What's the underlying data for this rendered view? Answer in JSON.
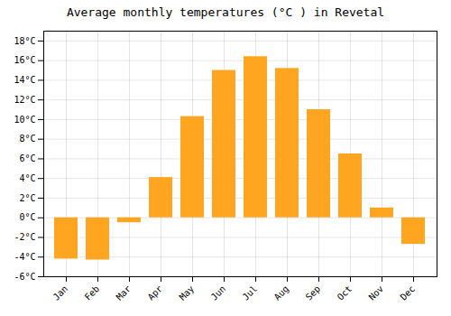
{
  "chart_data": {
    "type": "bar",
    "title": "Average monthly temperatures (°C ) in Revetal",
    "categories": [
      "Jan",
      "Feb",
      "Mar",
      "Apr",
      "May",
      "Jun",
      "Jul",
      "Aug",
      "Sep",
      "Oct",
      "Nov",
      "Dec"
    ],
    "values": [
      -4.2,
      -4.3,
      -0.5,
      4.1,
      10.3,
      15.0,
      16.4,
      15.2,
      11.0,
      6.5,
      1.0,
      -2.7
    ],
    "color": "#FFA520",
    "ylim": [
      -6,
      19
    ],
    "yticks": [
      {
        "value": -6,
        "label": "-6°C"
      },
      {
        "value": -4,
        "label": "-4°C"
      },
      {
        "value": -2,
        "label": "-2°C"
      },
      {
        "value": 0,
        "label": "0°C"
      },
      {
        "value": 2,
        "label": "2°C"
      },
      {
        "value": 4,
        "label": "4°C"
      },
      {
        "value": 6,
        "label": "6°C"
      },
      {
        "value": 8,
        "label": "8°C"
      },
      {
        "value": 10,
        "label": "10°C"
      },
      {
        "value": 12,
        "label": "12°C"
      },
      {
        "value": 14,
        "label": "14°C"
      },
      {
        "value": 16,
        "label": "16°C"
      },
      {
        "value": 18,
        "label": "18°C"
      }
    ],
    "grid": true
  }
}
